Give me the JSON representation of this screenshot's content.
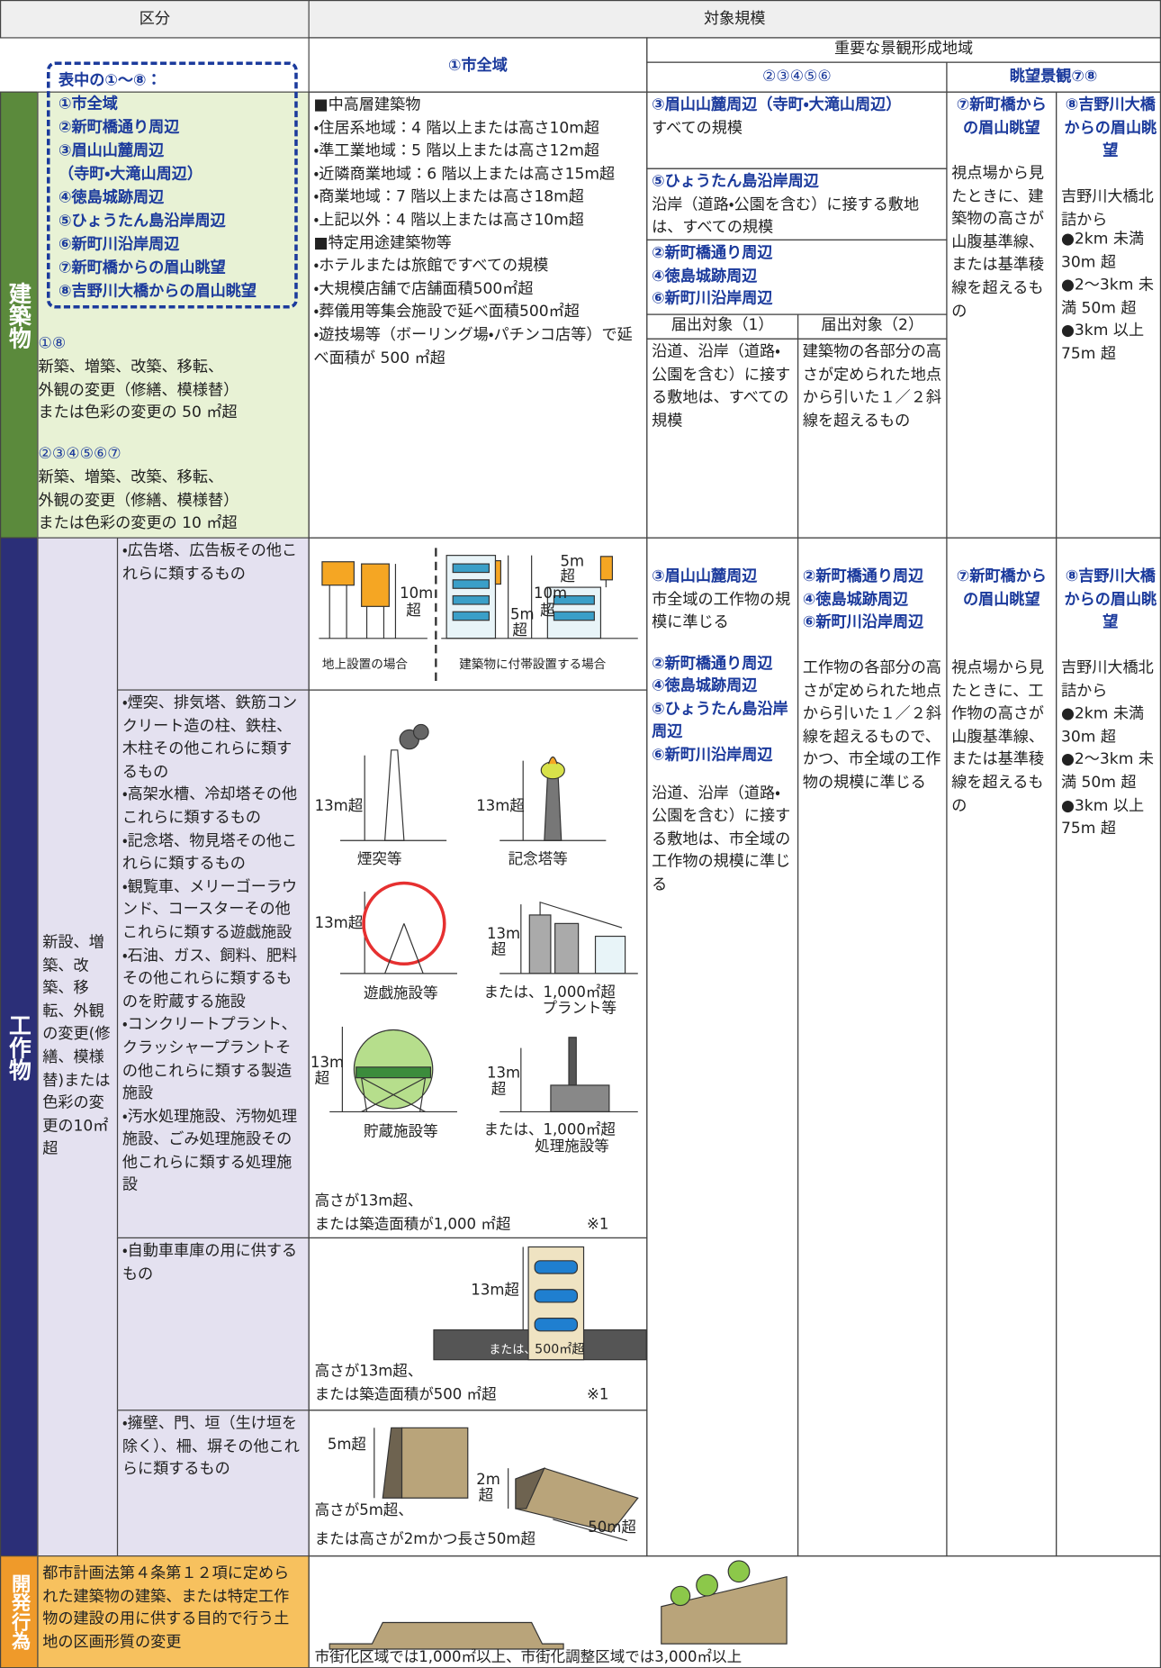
{
  "header": {
    "category": "区分",
    "scope": "対象規模",
    "city_wide": "①市全域",
    "important_area": "重要な景観形成地域",
    "group_a": "②③④⑤⑥",
    "view": "眺望景観⑦⑧"
  },
  "building": {
    "label": "建築物",
    "legend_title": "表中の①～⑧：",
    "legend_items": [
      "①市全域",
      "②新町橋通り周辺",
      "③眉山山麓周辺",
      "（寺町・大滝山周辺）",
      "④徳島城跡周辺",
      "⑤ひょうたん島沿岸周辺",
      "⑥新町川沿岸周辺",
      "⑦新町橋からの眉山眺望",
      "⑧吉野川大橋からの眉山眺望"
    ],
    "acts": [
      {
        "areas": "①⑧",
        "text": [
          "新築、増築、改築、移転、",
          "外観の変更（修繕、模様替）",
          "または色彩の変更の 50 ㎡超"
        ]
      },
      {
        "areas": "②③④⑤⑥⑦",
        "text": [
          "新築、増築、改築、移転、",
          "外観の変更（修繕、模様替）",
          "または色彩の変更の 10 ㎡超"
        ]
      }
    ],
    "city_wide": [
      "■中高層建築物",
      "・住居系地域：4 階以上または高さ10m超",
      "・準工業地域：5 階以上または高さ12m超",
      "・近隣商業地域：6 階以上または高さ15m超",
      "・商業地域：7 階以上または高さ18m超",
      "・上記以外：4 階以上または高さ10m超",
      "■特定用途建築物等",
      "・ホテルまたは旅館ですべての規模",
      "・大規模店舗で店舗面積500㎡超",
      "・葬儀用等集会施設で延べ面積500㎡超",
      "・遊技場等（ボーリング場・パチンコ店等）で延べ面積が 500 ㎡超"
    ],
    "area3": {
      "title": "③眉山山麓周辺（寺町・大滝山周辺）",
      "text": "すべての規模"
    },
    "area5": {
      "title": "⑤ひょうたん島沿岸周辺",
      "text": "沿岸（道路・公園を含む）に接する敷地は、すべての規模"
    },
    "area246": {
      "titles": [
        "②新町橋通り周辺",
        "④徳島城跡周辺",
        "⑥新町川沿岸周辺"
      ],
      "target1_head": "届出対象（1）",
      "target1": "沿道、沿岸（道路・公園を含む）に接する敷地は、すべての規模",
      "target2_head": "届出対象（2）",
      "target2": "建築物の各部分の高さが定められた地点から引いた１／２斜線を超えるもの"
    },
    "view7": {
      "title": "⑦新町橋からの眉山眺望",
      "text": "視点場から見たときに、建築物の高さが山腹基準線、または基準稜線を超えるもの"
    },
    "view8": {
      "title": "⑧吉野川大橋からの眉山眺望",
      "text": "吉野川大橋北詰から",
      "items": [
        "●2km 未満 30m 超",
        "●2～3km 未満 50m 超",
        "●3km 以上 75m 超"
      ]
    }
  },
  "structure": {
    "label": "工作物",
    "acts": "新設、増築、改築、移転、外観の変更(修繕、模様替)または色彩の変更の10㎡超",
    "types": [
      [
        "・広告塔、広告板その他これらに類するもの"
      ],
      [
        "・煙突、排気塔、鉄筋コンクリート造の柱、鉄柱、木柱その他これらに類するもの",
        "・高架水槽、冷却塔その他これらに類するもの",
        "・記念塔、物見塔その他これらに類するもの",
        "・観覧車、メリーゴーラウンド、コースターその他これらに類する遊戯施設",
        "・石油、ガス、飼料、肥料その他これらに類するものを貯蔵する施設",
        "・コンクリートプラント、クラッシャープラントその他これらに類する製造施設",
        "・汚水処理施設、汚物処理施設、ごみ処理施設その他これらに類する処理施設"
      ],
      [
        "・自動車車庫の用に供するもの"
      ],
      [
        "・擁壁、門、垣（生け垣を除く）、柵、塀その他これらに類するもの"
      ]
    ],
    "sign_fig": {
      "ground_h": "10m",
      "ground_h2": "超",
      "bldg_h": "10m",
      "bldg_h2": "超",
      "low_h": "5m",
      "low_h2": "超",
      "top_h": "5m",
      "top_h2": "超",
      "ground_caption": "地上設置の場合",
      "bldg_caption": "建築物に付帯設置する場合"
    },
    "tower_fig": {
      "chimney_h": "13m超",
      "chimney": "煙突等",
      "memorial_h": "13m超",
      "memorial": "記念塔等",
      "ride_h": "13m超",
      "ride": "遊戯施設等",
      "plant_h": "13m",
      "plant_h2": "超",
      "plant_area": "または、1,000㎡超",
      "plant": "プラント等",
      "storage_h": "13m",
      "storage_h2": "超",
      "storage": "貯蔵施設等",
      "treat_h": "13m",
      "treat_h2": "超",
      "treat_area": "または、1,000㎡超",
      "treat": "処理施設等",
      "note1": "高さが13m超、",
      "note2": "または築造面積が1,000 ㎡超",
      "mark": "※1"
    },
    "garage_fig": {
      "h": "13m超",
      "or": "または、",
      "area": "500㎡超",
      "note1": "高さが13m超、",
      "note2": "または築造面積が500 ㎡超",
      "mark": "※1"
    },
    "wall_fig": {
      "wall_h": "5m超",
      "fence_h": "2m",
      "fence_h2": "超",
      "fence_len": "50m超",
      "note1": "高さが5m超、",
      "note2": "または高さが2mかつ長さ50m超"
    },
    "area3": {
      "title": "③眉山山麓周辺",
      "text": "市全域の工作物の規模に準じる"
    },
    "area2456": {
      "titles": [
        "②新町橋通り周辺",
        "④徳島城跡周辺",
        "⑤ひょうたん島沿岸周辺",
        "⑥新町川沿岸周辺"
      ],
      "text": "沿道、沿岸（道路・公園を含む）に接する敷地は、市全域の工作物の規模に準じる"
    },
    "area246": {
      "titles": [
        "②新町橋通り周辺",
        "④徳島城跡周辺",
        "⑥新町川沿岸周辺"
      ],
      "text": "工作物の各部分の高さが定められた地点から引いた１／２斜線を超えるもので、かつ、市全域の工作物の規模に準じる"
    },
    "view7": {
      "title": "⑦新町橋からの眉山眺望",
      "text": "視点場から見たときに、工作物の高さが山腹基準線、または基準稜線を超えるもの"
    },
    "view8": {
      "title": "⑧吉野川大橋からの眉山眺望",
      "text": "吉野川大橋北詰から",
      "items": [
        "●2km 未満 30m 超",
        "●2～3km 未満 50m 超",
        "●3km 以上 75m 超"
      ]
    }
  },
  "development": {
    "label": "開発行為",
    "text": "都市計画法第４条第１２項に定められた建築物の建築、または特定工作物の建設の用に供する目的で行う土地の区画形質の変更",
    "note": "市街化区域では1,000㎡以上、市街化調整区域では3,000㎡以上"
  }
}
